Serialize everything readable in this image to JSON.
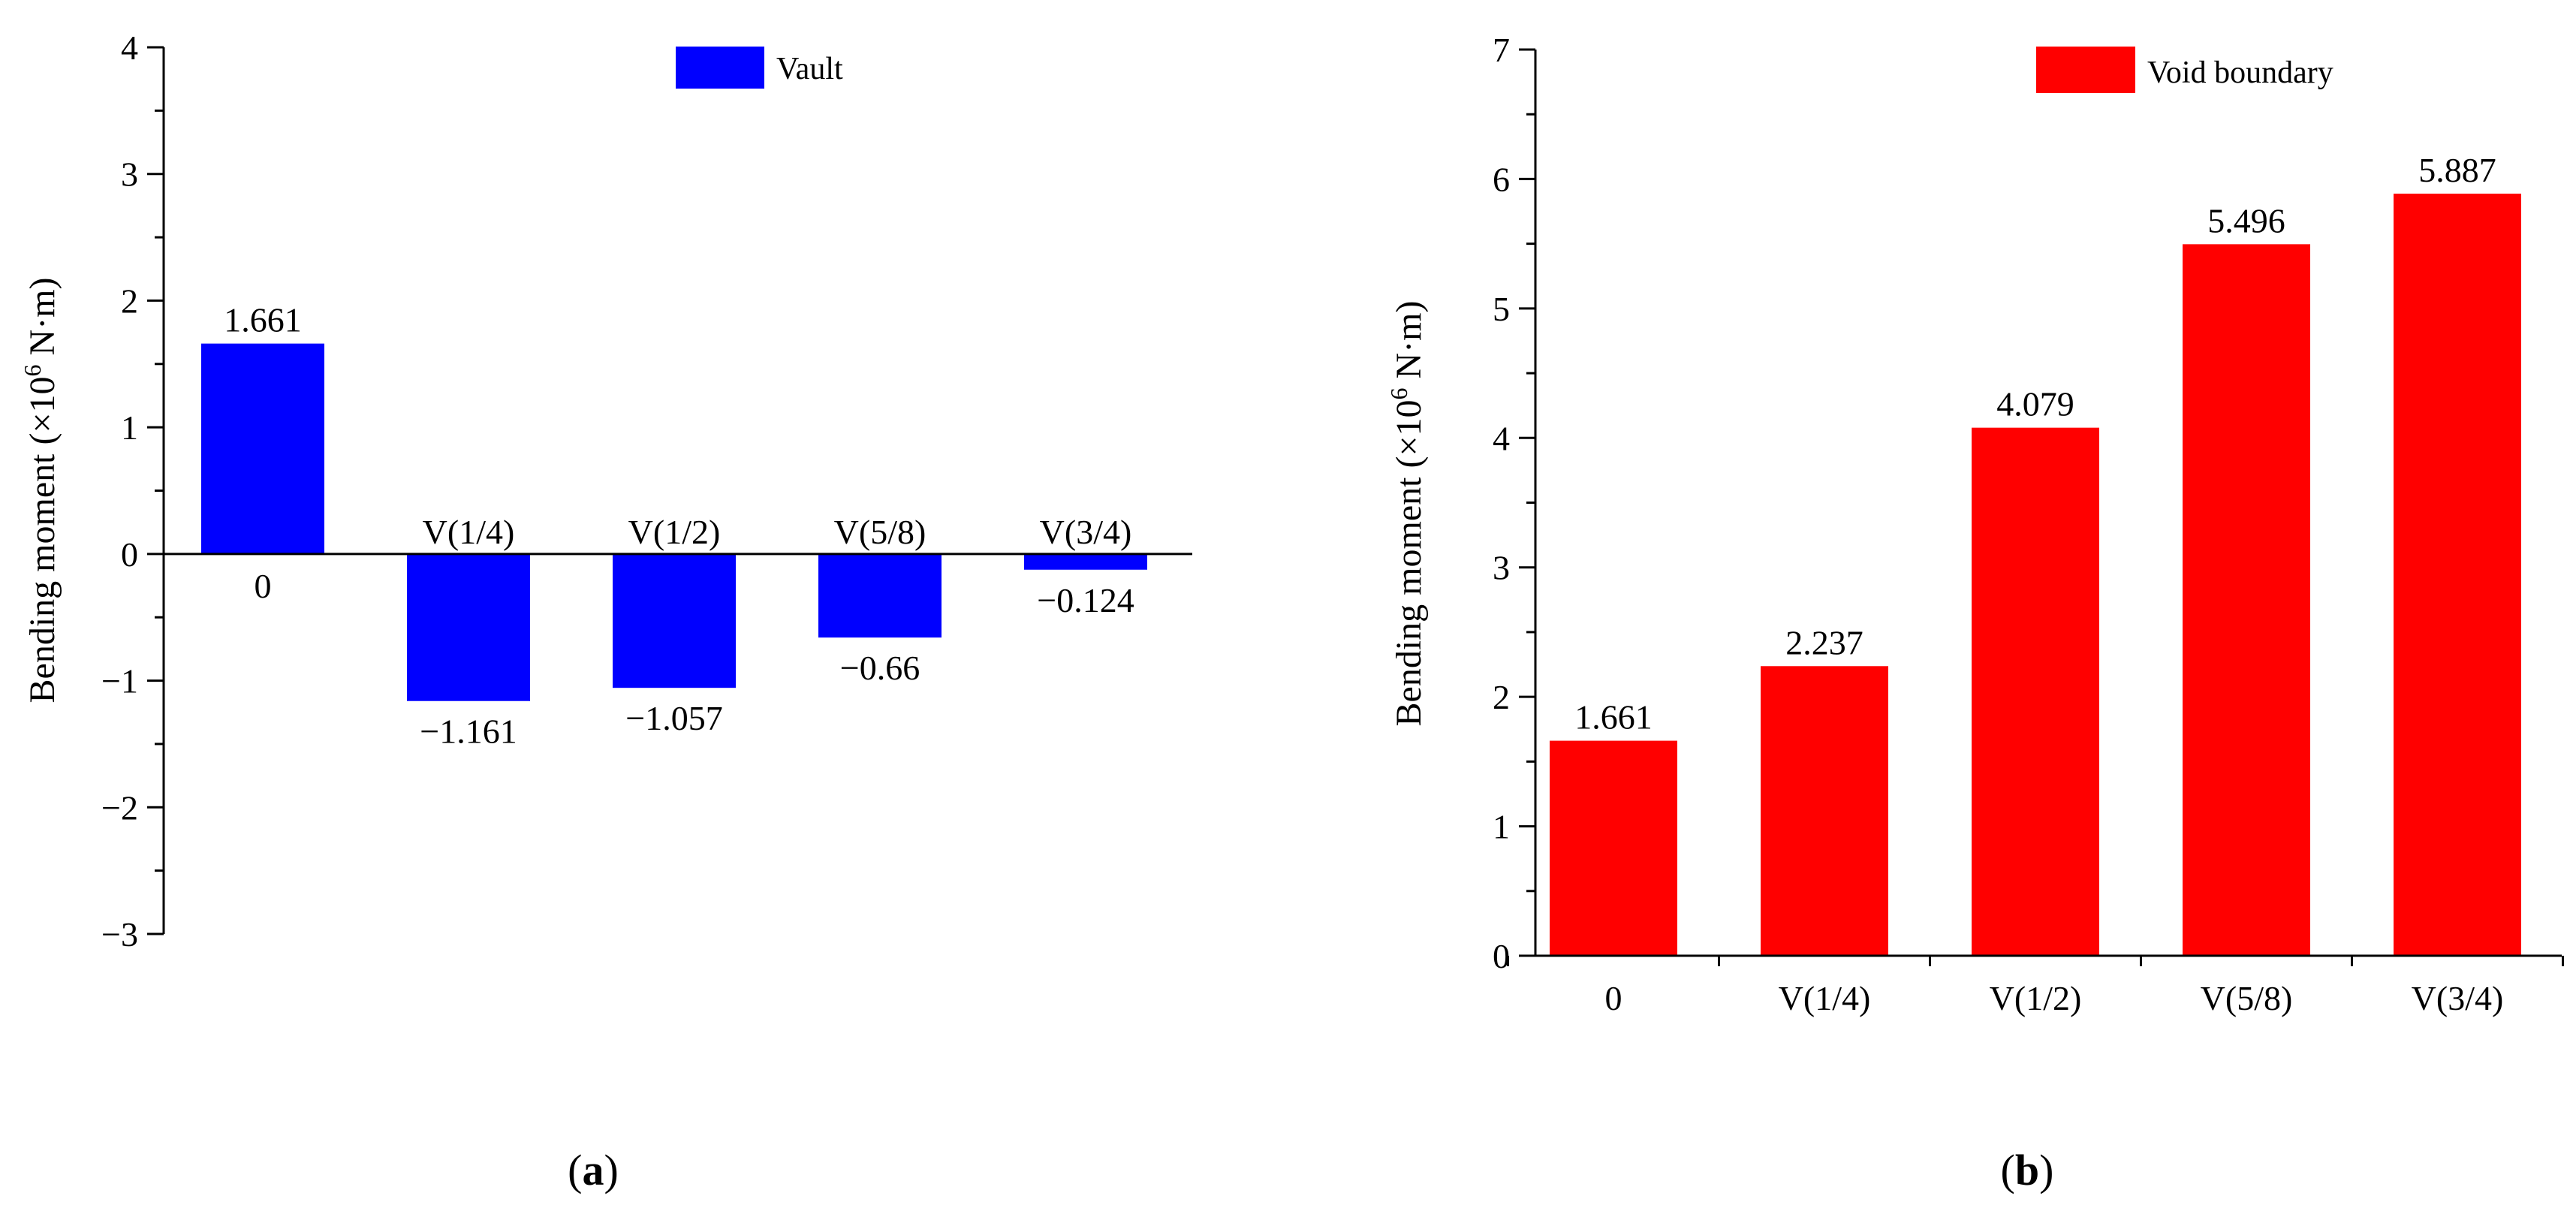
{
  "chart_data": [
    {
      "id": "a",
      "type": "bar",
      "panel_label": "a",
      "categories": [
        "0",
        "V(1/4)",
        "V(1/2)",
        "V(5/8)",
        "V(3/4)"
      ],
      "series": [
        {
          "name": "Vault",
          "color": "#0000ff",
          "values": [
            1.661,
            -1.161,
            -1.057,
            -0.66,
            -0.124
          ],
          "labels": [
            "1.661",
            "−1.161",
            "−1.057",
            "−0.66",
            "−0.124"
          ]
        }
      ],
      "ylabel": {
        "prefix": "Bending moment (×10",
        "sup": "6",
        "suffix": " N·m)"
      },
      "ylim": [
        -3,
        4
      ],
      "yticks": [
        -3,
        -2,
        -1,
        0,
        1,
        2,
        3,
        4
      ],
      "ytick_labels": [
        "−3",
        "−2",
        "−1",
        "0",
        "1",
        "2",
        "3",
        "4"
      ],
      "legend": "top-center"
    },
    {
      "id": "b",
      "type": "bar",
      "panel_label": "b",
      "categories": [
        "0",
        "V(1/4)",
        "V(1/2)",
        "V(5/8)",
        "V(3/4)"
      ],
      "series": [
        {
          "name": "Void boundary",
          "color": "#ff0000",
          "values": [
            1.661,
            2.237,
            4.079,
            5.496,
            5.887
          ],
          "labels": [
            "1.661",
            "2.237",
            "4.079",
            "5.496",
            "5.887"
          ]
        }
      ],
      "ylabel": {
        "prefix": "Bending moment (×10",
        "sup": "6",
        "suffix": " N·m)"
      },
      "ylim": [
        0,
        7
      ],
      "yticks": [
        0,
        1,
        2,
        3,
        4,
        5,
        6,
        7
      ],
      "ytick_labels": [
        "0",
        "1",
        "2",
        "3",
        "4",
        "5",
        "6",
        "7"
      ],
      "legend": "top-center"
    }
  ]
}
